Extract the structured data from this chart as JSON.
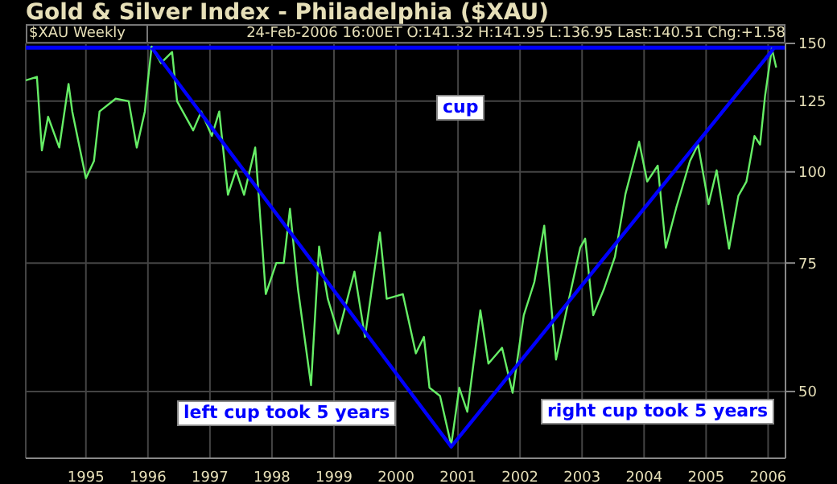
{
  "chart_data": {
    "type": "line",
    "title": "Gold & Silver Index - Philadelphia ($XAU)",
    "subtitle": "$XAU Weekly",
    "annotations": [
      "24-Feb-2006 16:00ET O:141.32 H:141.95 L:136.95 Last:140.51 Chg:+1.58",
      "cup",
      "left cup took 5 years",
      "right cup took 5 years"
    ],
    "x": [
      1994.03,
      1994.21,
      1994.29,
      1994.39,
      1994.57,
      1994.72,
      1994.78,
      1995.0,
      1995.13,
      1995.22,
      1995.48,
      1995.69,
      1995.82,
      1995.95,
      1995.99,
      1996.06,
      1996.21,
      1996.39,
      1996.47,
      1996.73,
      1996.86,
      1997.03,
      1997.15,
      1997.29,
      1997.42,
      1997.55,
      1997.73,
      1997.9,
      1998.07,
      1998.19,
      1998.29,
      1998.42,
      1998.63,
      1998.76,
      1998.9,
      1999.07,
      1999.33,
      1999.5,
      1999.74,
      1999.85,
      2000.11,
      2000.32,
      2000.45,
      2000.54,
      2000.71,
      2000.89,
      2001.02,
      2001.15,
      2001.36,
      2001.49,
      2001.71,
      2001.88,
      2002.06,
      2002.23,
      2002.39,
      2002.58,
      2002.79,
      2002.97,
      2003.05,
      2003.18,
      2003.35,
      2003.53,
      2003.7,
      2003.92,
      2004.05,
      2004.22,
      2004.35,
      2004.52,
      2004.74,
      2004.87,
      2005.04,
      2005.17,
      2005.37,
      2005.52,
      2005.65,
      2005.78,
      2005.87,
      2005.95,
      2006.06,
      2006.13
    ],
    "series": [
      {
        "color": "#66ee66",
        "values": [
          133.5,
          135,
          107,
          119,
          108,
          132,
          121,
          98,
          103.5,
          121,
          126,
          125,
          108,
          121,
          131,
          148.5,
          141,
          146,
          125,
          114,
          121,
          112,
          121,
          93,
          100.5,
          93,
          108,
          68,
          75,
          75,
          89,
          69,
          51,
          79,
          67,
          60,
          73,
          59.4,
          82.6,
          67,
          68,
          56.4,
          59.4,
          50.6,
          49.3,
          42.2,
          50.6,
          46.9,
          64.6,
          54.6,
          57.4,
          49.8,
          63.6,
          70.6,
          84.4,
          55.3,
          67,
          78.7,
          81,
          63.6,
          69,
          76.5,
          93.3,
          110,
          97,
          102,
          78.7,
          89.4,
          103.5,
          109,
          90.3,
          100.5,
          78.5,
          92.7,
          97,
          112,
          109,
          127,
          147.6,
          139
        ]
      },
      {
        "type": "line",
        "color": "#0000ff",
        "x": [
          1996.06,
          2000.89,
          2006.1
        ],
        "values": [
          148,
          42,
          148
        ]
      }
    ],
    "ref_lines": [
      {
        "axis": "y",
        "value": 148,
        "color": "#0000ff"
      }
    ],
    "xlim": [
      1994.03,
      2006.28
    ],
    "xticks": [
      1995,
      1996,
      1997,
      1998,
      1999,
      2000,
      2001,
      2002,
      2003,
      2004,
      2005,
      2006
    ],
    "ylim": [
      40.5,
      150
    ],
    "yticks": [
      50,
      75,
      100,
      125,
      150
    ],
    "log": true,
    "grid": true,
    "line_style": "solid",
    "marker": "none"
  }
}
